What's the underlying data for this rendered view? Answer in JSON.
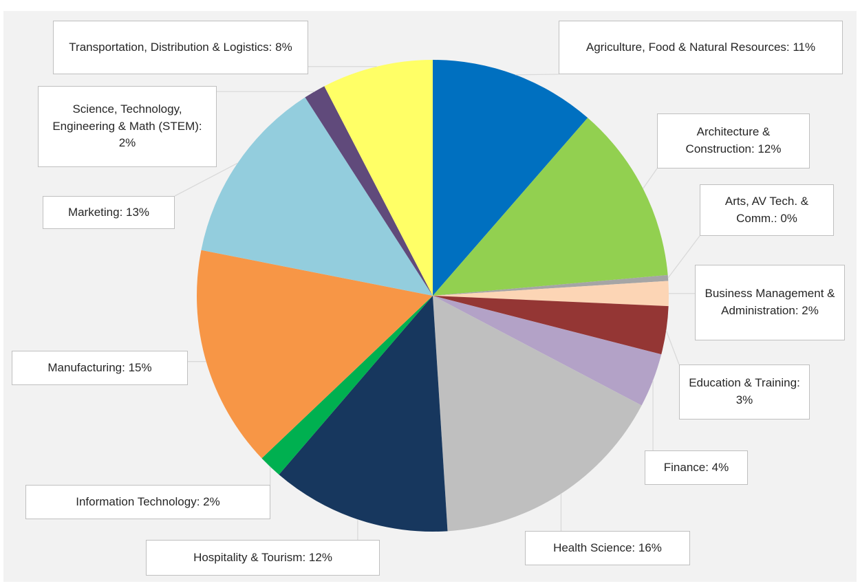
{
  "chart_data": {
    "type": "pie",
    "categories": [
      "Agriculture, Food & Natural Resources",
      "Architecture & Construction",
      "Arts, AV Tech. & Comm.",
      "Business Management & Administration",
      "Education & Training",
      "Finance",
      "Health Science",
      "Hospitality & Tourism",
      "Information Technology",
      "Manufacturing",
      "Marketing",
      "Science, Technology, Engineering & Math (STEM)",
      "Transportation, Distribution & Logistics"
    ],
    "values": [
      11.4,
      12.2,
      0.4,
      1.7,
      3.3,
      3.7,
      16.3,
      12.3,
      1.6,
      15.2,
      12.8,
      1.5,
      7.6
    ],
    "value_labels": [
      "Agriculture, Food & Natural Resources: 11%",
      "Architecture & Construction: 12%",
      "Arts, AV Tech. & Comm.: 0%",
      "Business Management & Administration: 2%",
      "Education & Training: 3%",
      "Finance: 4%",
      "Health Science: 16%",
      "Hospitality & Tourism: 12%",
      "Information Technology: 2%",
      "Manufacturing: 15%",
      "Marketing: 13%",
      "Science, Technology, Engineering & Math (STEM): 2%",
      "Transportation, Distribution & Logistics: 8%"
    ],
    "colors": [
      "#0070c0",
      "#92d050",
      "#a5a5a5",
      "#fcd5b5",
      "#943634",
      "#b3a2c7",
      "#bfbfbf",
      "#17375e",
      "#00b050",
      "#f79646",
      "#93cddd",
      "#604a7b",
      "#ffff66"
    ]
  }
}
